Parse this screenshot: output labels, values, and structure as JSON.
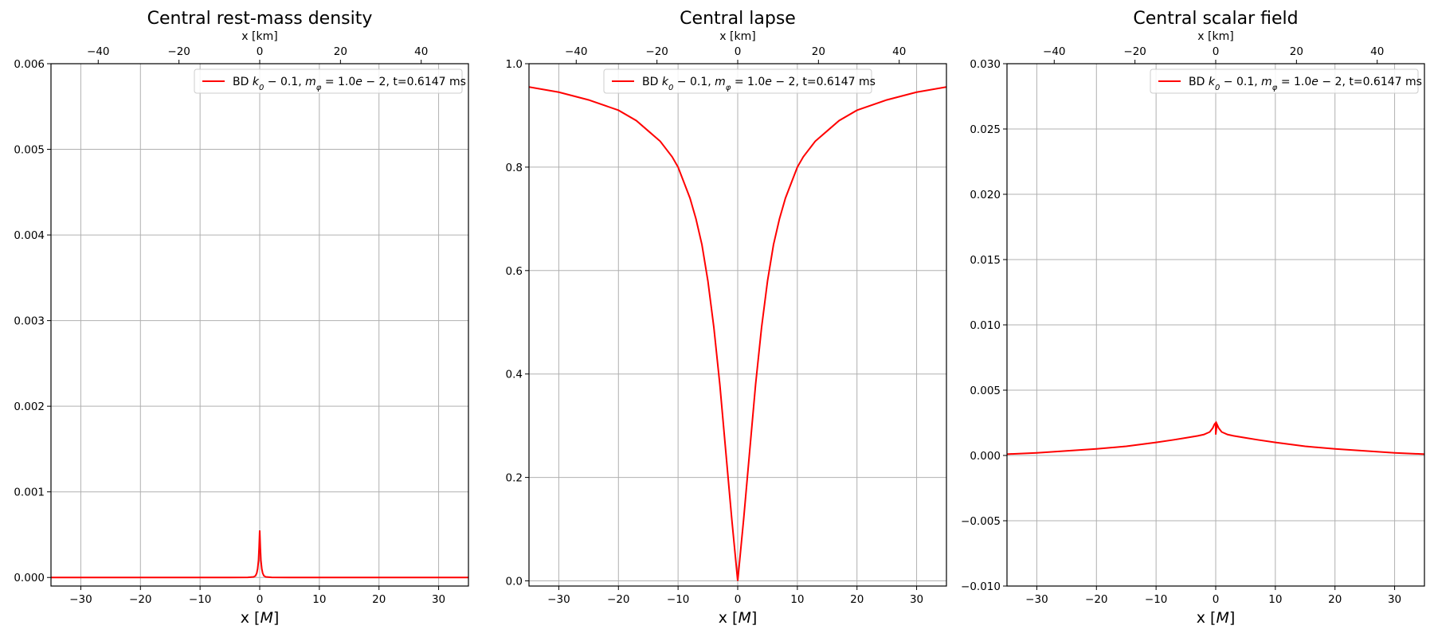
{
  "chart_data": [
    {
      "type": "line",
      "title": "Central rest-mass density",
      "xlabel": "x [M]",
      "x2label": "x [km]",
      "xlim": [
        -35,
        35
      ],
      "x2lim": [
        -51.7,
        51.7
      ],
      "ylim": [
        -0.0001,
        0.006
      ],
      "xticks": [
        "−30",
        "−20",
        "−10",
        "0",
        "10",
        "20",
        "30"
      ],
      "xtick_values": [
        -30,
        -20,
        -10,
        0,
        10,
        20,
        30
      ],
      "x2ticks": [
        "−40",
        "−20",
        "0",
        "20",
        "40"
      ],
      "x2tick_values": [
        -40,
        -20,
        0,
        20,
        40
      ],
      "yticks": [
        "0.000",
        "0.001",
        "0.002",
        "0.003",
        "0.004",
        "0.005",
        "0.006"
      ],
      "ytick_values": [
        0,
        0.001,
        0.002,
        0.003,
        0.004,
        0.005,
        0.006
      ],
      "grid": true,
      "legend_position": "top-right",
      "series": [
        {
          "name": "BD k0 − 0.1, mφ = 1.0e − 2,  t=0.6147 ms",
          "color": "#ff0000",
          "x": [
            -35,
            -5,
            -2,
            -1,
            -0.7,
            -0.5,
            -0.35,
            -0.2,
            -0.1,
            0,
            0.1,
            0.2,
            0.35,
            0.5,
            0.7,
            1,
            2,
            5,
            35
          ],
          "y": [
            0,
            0,
            1e-06,
            7e-06,
            2e-05,
            5e-05,
            0.0001,
            0.0002,
            0.00035,
            0.00055,
            0.00035,
            0.0002,
            0.0001,
            5e-05,
            2e-05,
            7e-06,
            1e-06,
            0,
            0
          ]
        }
      ]
    },
    {
      "type": "line",
      "title": "Central lapse",
      "xlabel": "x [M]",
      "x2label": "x [km]",
      "xlim": [
        -35,
        35
      ],
      "x2lim": [
        -51.7,
        51.7
      ],
      "ylim": [
        -0.01,
        1.0
      ],
      "xticks": [
        "−30",
        "−20",
        "−10",
        "0",
        "10",
        "20",
        "30"
      ],
      "xtick_values": [
        -30,
        -20,
        -10,
        0,
        10,
        20,
        30
      ],
      "x2ticks": [
        "−40",
        "−20",
        "0",
        "20",
        "40"
      ],
      "x2tick_values": [
        -40,
        -20,
        0,
        20,
        40
      ],
      "yticks": [
        "0.0",
        "0.2",
        "0.4",
        "0.6",
        "0.8",
        "1.0"
      ],
      "ytick_values": [
        0,
        0.2,
        0.4,
        0.6,
        0.8,
        1.0
      ],
      "grid": true,
      "legend_position": "top-center",
      "series": [
        {
          "name": "BD k0 − 0.1, mφ = 1.0e − 2,  t=0.6147 ms",
          "color": "#ff0000",
          "x": [
            -35,
            -30,
            -25,
            -20,
            -17,
            -15,
            -13,
            -11,
            -10,
            -9,
            -8,
            -7,
            -6,
            -5,
            -4,
            -3,
            -2,
            -1,
            0,
            1,
            2,
            3,
            4,
            5,
            6,
            7,
            8,
            9,
            10,
            11,
            13,
            15,
            17,
            20,
            25,
            30,
            35
          ],
          "y": [
            0.955,
            0.945,
            0.93,
            0.91,
            0.89,
            0.87,
            0.85,
            0.82,
            0.8,
            0.77,
            0.74,
            0.7,
            0.65,
            0.58,
            0.49,
            0.38,
            0.25,
            0.12,
            0.0,
            0.12,
            0.25,
            0.38,
            0.49,
            0.58,
            0.65,
            0.7,
            0.74,
            0.77,
            0.8,
            0.82,
            0.85,
            0.87,
            0.89,
            0.91,
            0.93,
            0.945,
            0.955
          ]
        }
      ]
    },
    {
      "type": "line",
      "title": "Central scalar field",
      "xlabel": "x [M]",
      "x2label": "x [km]",
      "xlim": [
        -35,
        35
      ],
      "x2lim": [
        -51.7,
        51.7
      ],
      "ylim": [
        -0.01,
        0.03
      ],
      "xticks": [
        "−30",
        "−20",
        "−10",
        "0",
        "10",
        "20",
        "30"
      ],
      "xtick_values": [
        -30,
        -20,
        -10,
        0,
        10,
        20,
        30
      ],
      "x2ticks": [
        "−40",
        "−20",
        "0",
        "20",
        "40"
      ],
      "x2tick_values": [
        -40,
        -20,
        0,
        20,
        40
      ],
      "yticks": [
        "−0.010",
        "−0.005",
        "0.000",
        "0.005",
        "0.010",
        "0.015",
        "0.020",
        "0.025",
        "0.030"
      ],
      "ytick_values": [
        -0.01,
        -0.005,
        0,
        0.005,
        0.01,
        0.015,
        0.02,
        0.025,
        0.03
      ],
      "grid": true,
      "legend_position": "top-right",
      "series": [
        {
          "name": "BD k0 − 0.1, mφ = 1.0e − 2,  t=0.6147 ms",
          "color": "#ff0000",
          "x": [
            -35,
            -30,
            -25,
            -20,
            -15,
            -10,
            -7,
            -5,
            -3,
            -2,
            -1,
            -0.5,
            -0.2,
            0,
            0,
            0.2,
            0.5,
            1,
            2,
            3,
            5,
            7,
            10,
            15,
            20,
            25,
            30,
            35
          ],
          "y": [
            0.0001,
            0.0002,
            0.00035,
            0.0005,
            0.0007,
            0.001,
            0.0012,
            0.00135,
            0.0015,
            0.0016,
            0.0018,
            0.0021,
            0.0024,
            0.0025,
            0.0016,
            0.0024,
            0.0021,
            0.0018,
            0.0016,
            0.0015,
            0.00135,
            0.0012,
            0.001,
            0.0007,
            0.0005,
            0.00035,
            0.0002,
            0.0001
          ]
        }
      ]
    }
  ]
}
